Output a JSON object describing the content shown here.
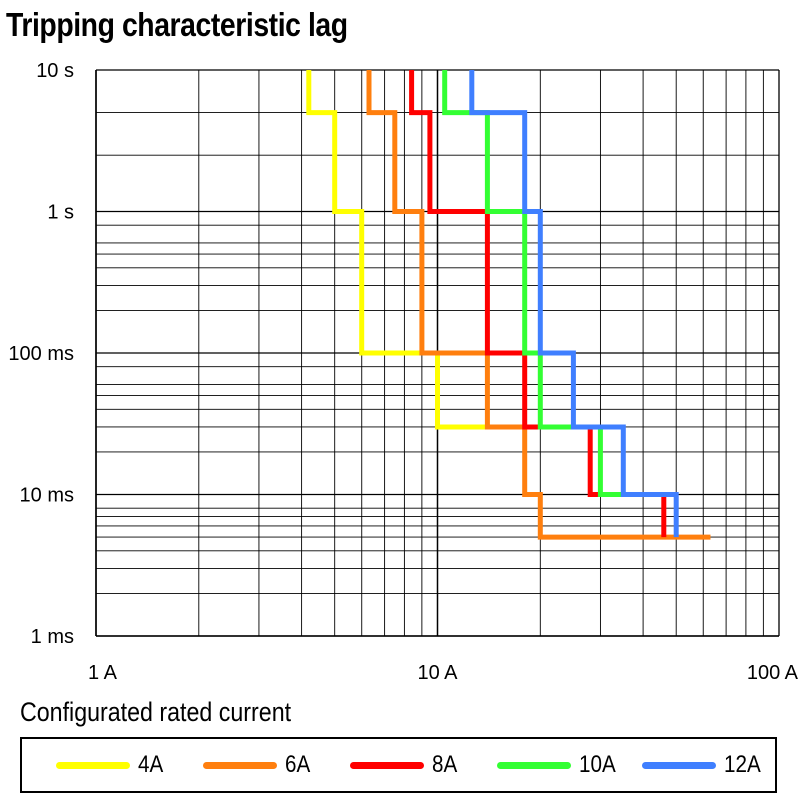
{
  "title": "Tripping characteristic lag",
  "legend_title": "Configurated rated current",
  "chart_data": {
    "type": "line",
    "title": "Tripping characteristic lag",
    "xscale": "log",
    "yscale": "log",
    "xlim": [
      1,
      100
    ],
    "ylim": [
      0.001,
      10
    ],
    "x_unit": "A",
    "y_unit": "s",
    "grid": true,
    "legend_placement": "bottom",
    "x_ticks": [
      {
        "value": 1,
        "label": "1 A"
      },
      {
        "value": 10,
        "label": "10 A"
      },
      {
        "value": 100,
        "label": "100 A"
      }
    ],
    "y_ticks": [
      {
        "value": 10,
        "label": "10 s"
      },
      {
        "value": 1,
        "label": "1 s"
      },
      {
        "value": 0.1,
        "label": "100 ms"
      },
      {
        "value": 0.01,
        "label": "10 ms"
      },
      {
        "value": 0.001,
        "label": "1 ms"
      }
    ],
    "y_minor_grid_values": [
      5,
      2.5,
      0.8,
      0.6,
      0.5,
      0.4,
      0.3,
      0.2,
      0.08,
      0.06,
      0.05,
      0.04,
      0.03,
      0.02,
      0.008,
      0.007,
      0.006,
      0.005,
      0.004,
      0.003,
      0.002
    ],
    "series": [
      {
        "name": "4A",
        "color": "#ffff00",
        "x": [
          4.2,
          4.2,
          5,
          5,
          6,
          6,
          10,
          10,
          14
        ],
        "y": [
          10,
          5,
          5,
          1,
          1,
          0.1,
          0.1,
          0.03,
          0.03
        ]
      },
      {
        "name": "6A",
        "color": "#ff7f0e",
        "x": [
          6.3,
          6.3,
          7.5,
          7.5,
          9,
          9,
          14,
          14,
          18,
          18,
          20,
          20,
          63
        ],
        "y": [
          10,
          5,
          5,
          1,
          1,
          0.1,
          0.1,
          0.03,
          0.03,
          0.01,
          0.01,
          0.005,
          0.005
        ]
      },
      {
        "name": "8A",
        "color": "#ff0000",
        "x": [
          8.4,
          8.4,
          9.5,
          9.5,
          14,
          14,
          18,
          18,
          28,
          28,
          46,
          46
        ],
        "y": [
          10,
          5,
          5,
          1,
          1,
          0.1,
          0.1,
          0.03,
          0.03,
          0.01,
          0.01,
          0.005
        ]
      },
      {
        "name": "10A",
        "color": "#33ff33",
        "x": [
          10.5,
          10.5,
          14,
          14,
          18,
          18,
          20,
          20,
          30,
          30,
          50
        ],
        "y": [
          10,
          5,
          5,
          1,
          1,
          0.1,
          0.1,
          0.03,
          0.03,
          0.01,
          0.01
        ]
      },
      {
        "name": "12A",
        "color": "#3f7fff",
        "x": [
          12.6,
          12.6,
          18,
          18,
          20,
          20,
          25,
          25,
          35,
          35,
          50,
          50
        ],
        "y": [
          10,
          5,
          5,
          1,
          1,
          0.1,
          0.1,
          0.03,
          0.03,
          0.01,
          0.01,
          0.005
        ]
      }
    ]
  }
}
